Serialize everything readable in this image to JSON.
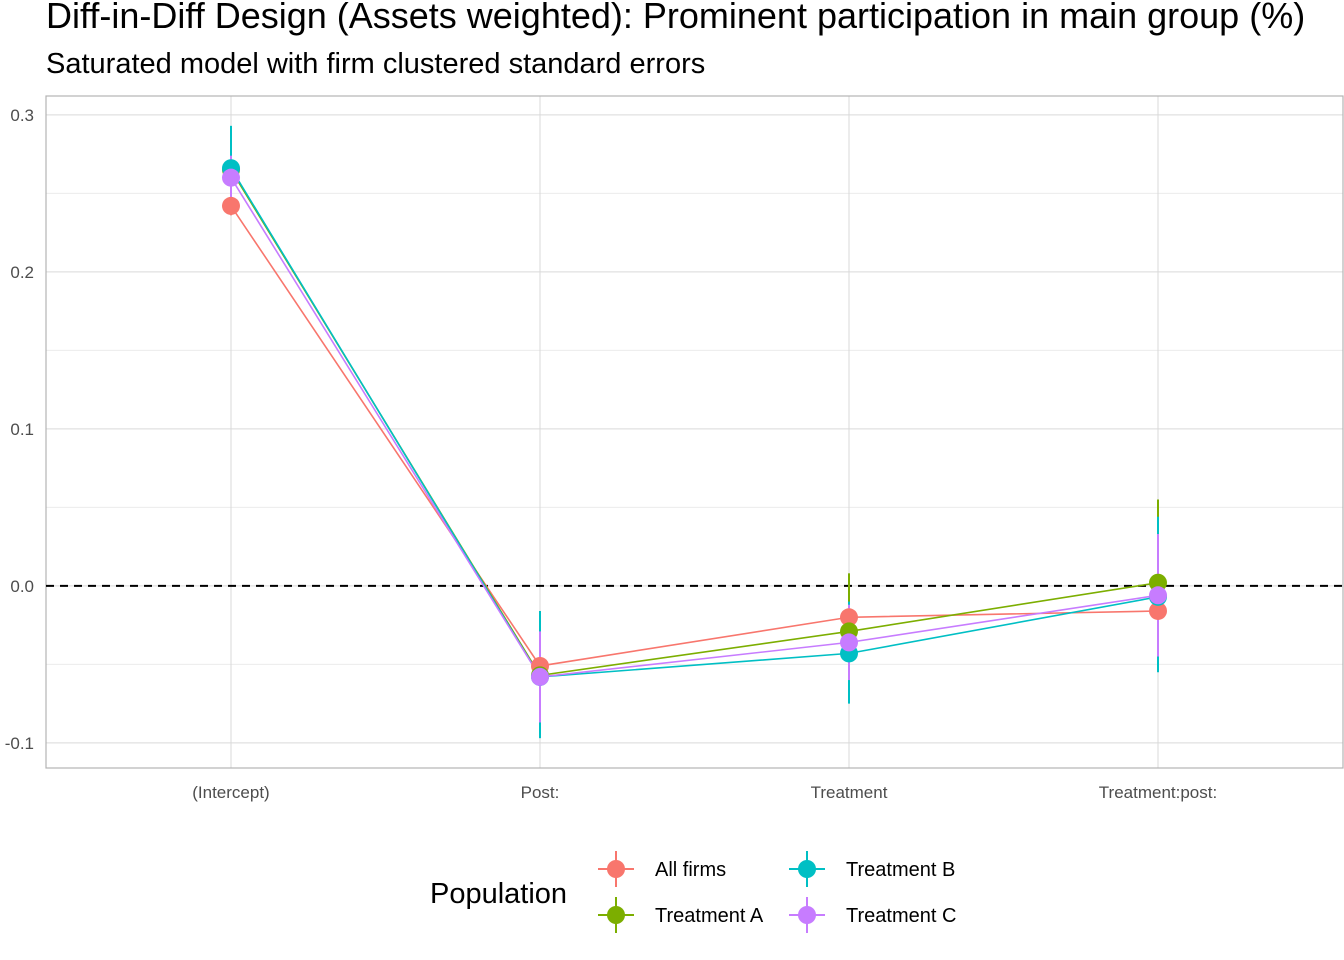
{
  "chart_data": {
    "type": "line",
    "title": "Diff-in-Diff Design (Assets weighted): Prominent participation in main group (%)",
    "subtitle": "Saturated model with firm clustered standard errors",
    "xlabel": "",
    "ylabel": "",
    "categories": [
      "(Intercept)",
      "Post:",
      "Treatment",
      "Treatment:post:"
    ],
    "y_ticks": [
      "0.3",
      "0.2",
      "0.1",
      "0.0",
      "-0.1"
    ],
    "ylim": [
      -0.116,
      0.312
    ],
    "grid": true,
    "reference_line": {
      "y": 0,
      "style": "dashed"
    },
    "legend": {
      "title": "Population",
      "position": "bottom"
    },
    "series": [
      {
        "name": "All firms",
        "color": "#F8766D",
        "values": [
          0.242,
          -0.051,
          -0.02,
          -0.016
        ],
        "ci_low": [
          0.236,
          -0.056,
          -0.025,
          -0.022
        ],
        "ci_high": [
          0.248,
          -0.046,
          -0.015,
          -0.01
        ]
      },
      {
        "name": "Treatment A",
        "color": "#7CAE00",
        "values": [
          0.265,
          -0.057,
          -0.029,
          0.002
        ],
        "ci_low": [
          0.258,
          -0.062,
          -0.067,
          -0.052
        ],
        "ci_high": [
          0.272,
          -0.052,
          0.008,
          0.055
        ]
      },
      {
        "name": "Treatment B",
        "color": "#00BFC4",
        "values": [
          0.266,
          -0.058,
          -0.043,
          -0.007
        ],
        "ci_low": [
          0.239,
          -0.097,
          -0.075,
          -0.055
        ],
        "ci_high": [
          0.293,
          -0.016,
          -0.01,
          0.044
        ]
      },
      {
        "name": "Treatment C",
        "color": "#C77CFF",
        "values": [
          0.26,
          -0.058,
          -0.036,
          -0.006
        ],
        "ci_low": [
          0.246,
          -0.087,
          -0.06,
          -0.045
        ],
        "ci_high": [
          0.274,
          -0.029,
          -0.012,
          0.033
        ]
      }
    ]
  }
}
